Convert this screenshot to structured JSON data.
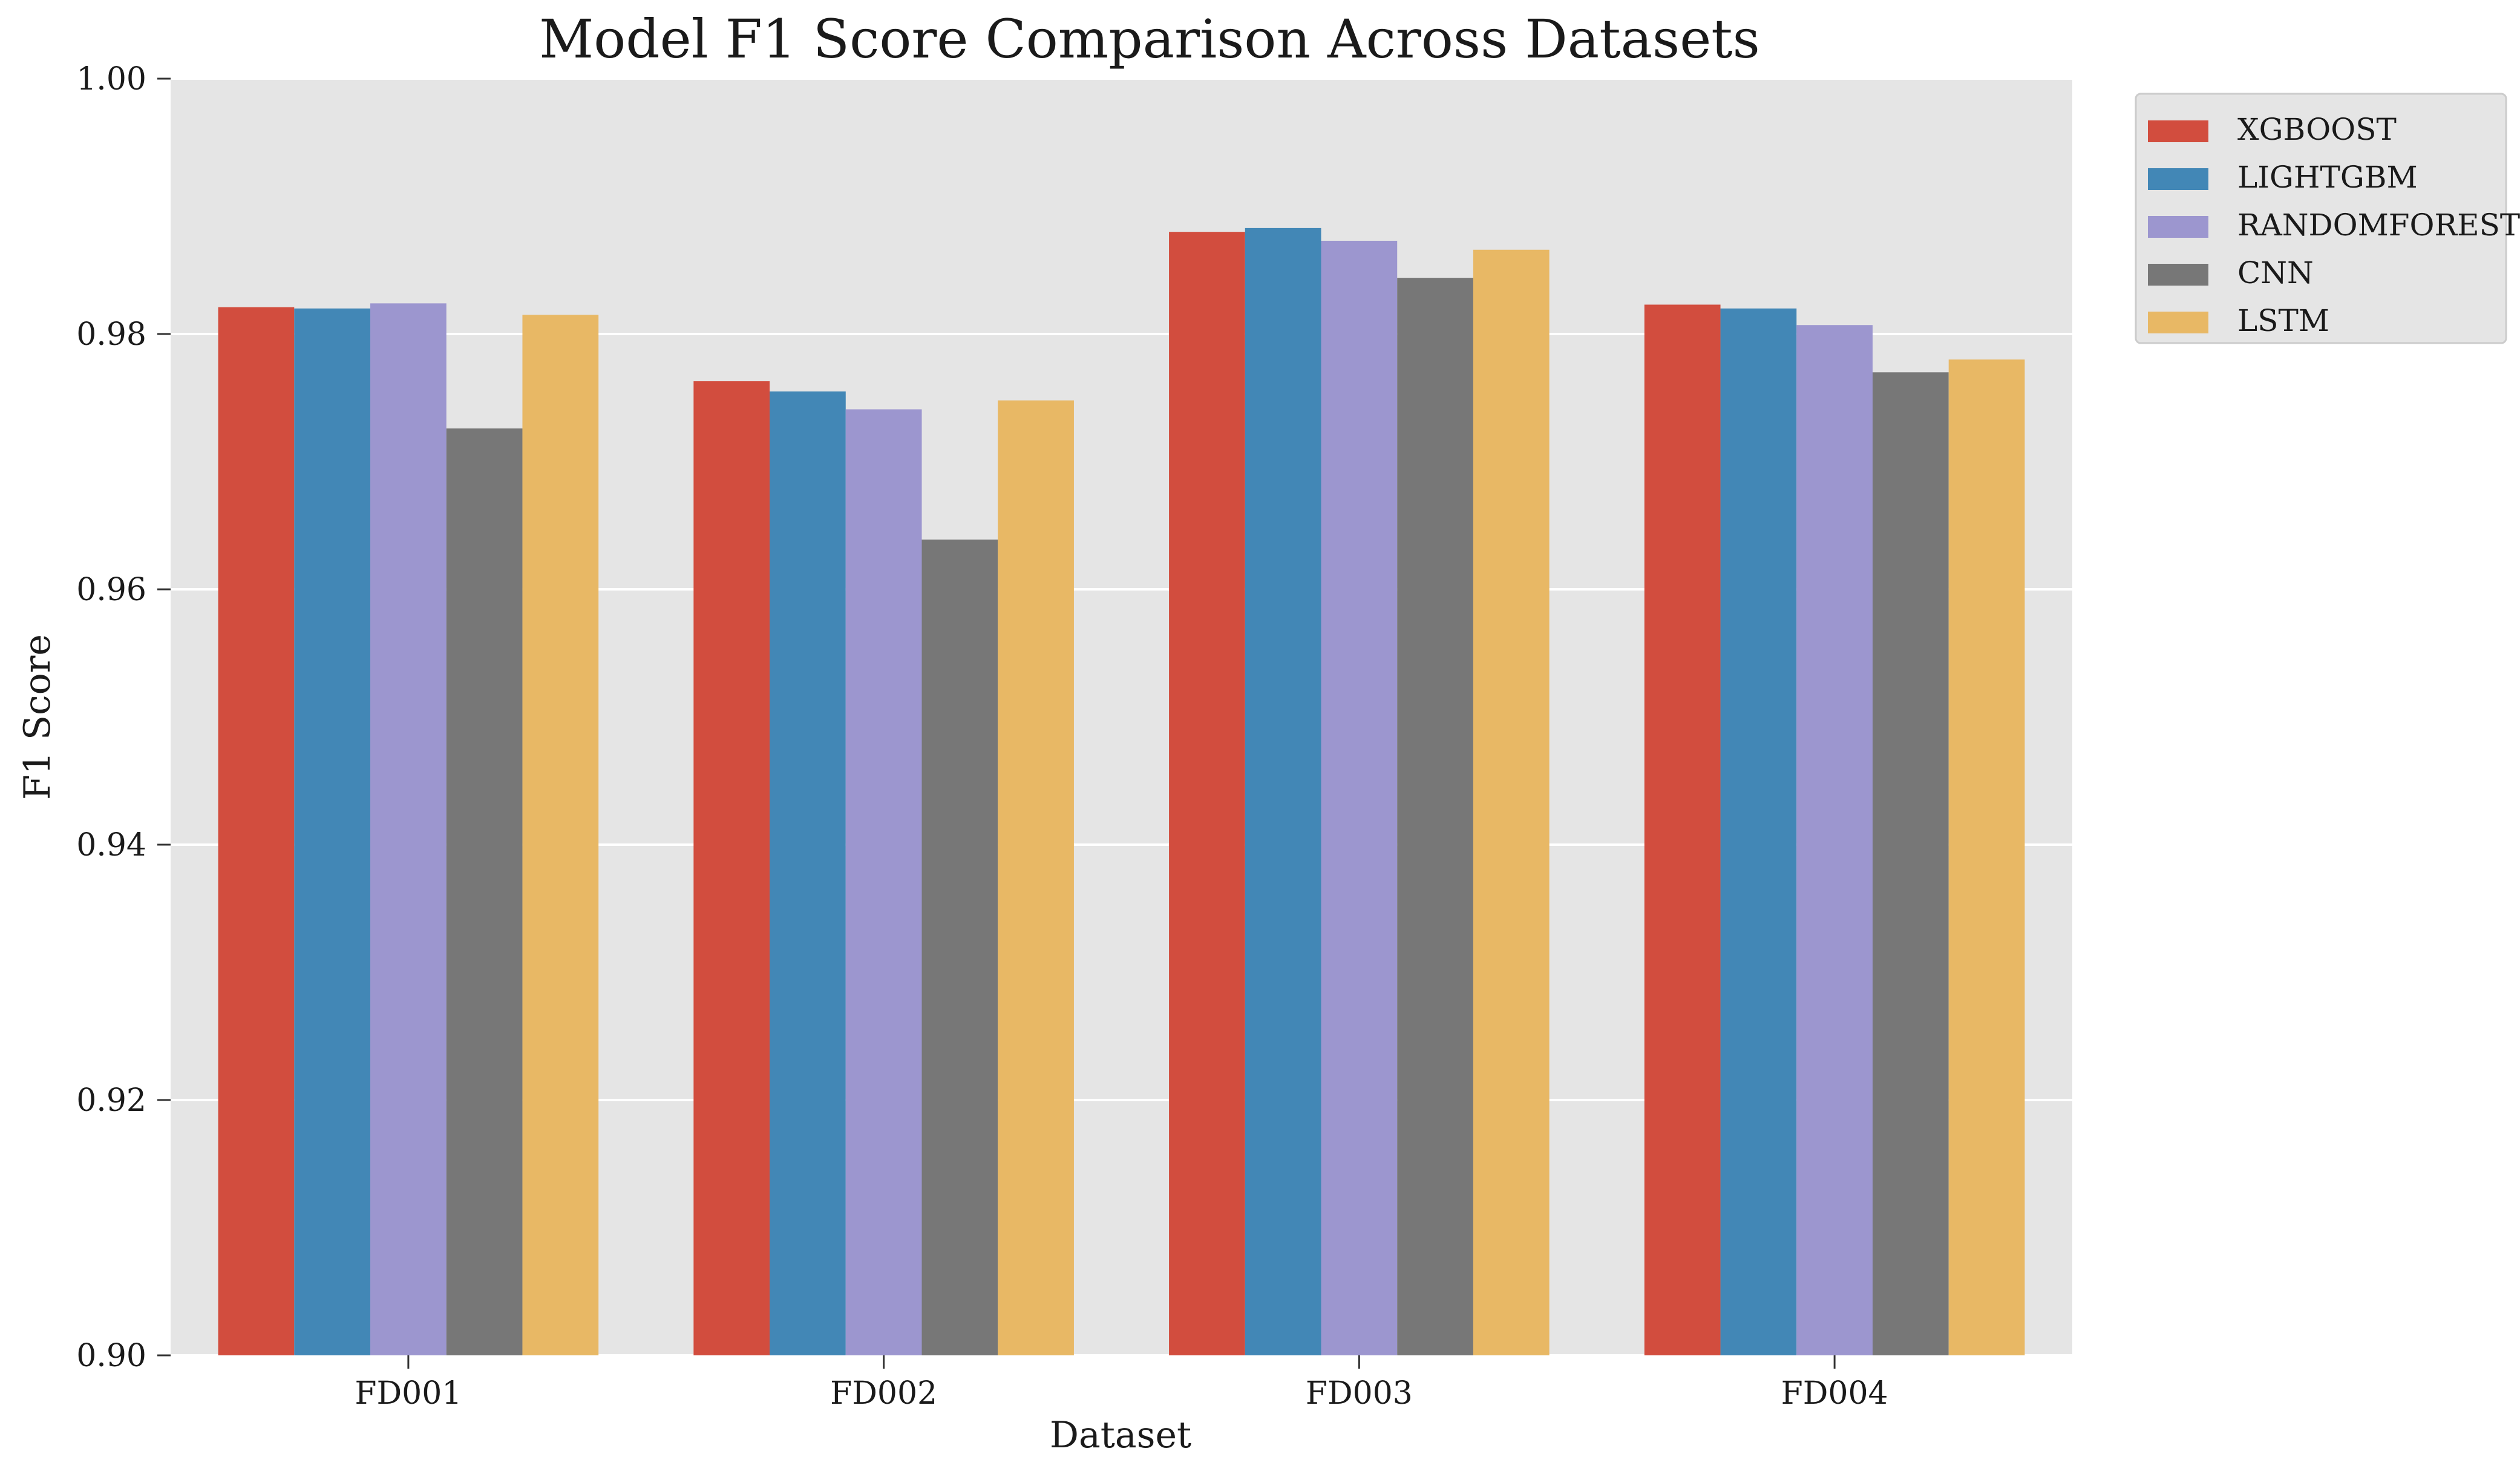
{
  "chart_data": {
    "type": "bar",
    "title": "Model F1 Score Comparison Across Datasets",
    "xlabel": "Dataset",
    "ylabel": "F1 Score",
    "ylim": [
      0.9,
      1.0
    ],
    "yticks": [
      "0.90",
      "0.92",
      "0.94",
      "0.96",
      "0.98",
      "1.00"
    ],
    "ytick_values": [
      0.9,
      0.92,
      0.94,
      0.96,
      0.98,
      1.0
    ],
    "categories": [
      "FD001",
      "FD002",
      "FD003",
      "FD004"
    ],
    "series": [
      {
        "name": "XGBOOST",
        "color": "#d24d3e",
        "values": [
          0.9821,
          0.9763,
          0.988,
          0.9823
        ]
      },
      {
        "name": "LIGHTGBM",
        "color": "#4287b6",
        "values": [
          0.982,
          0.9755,
          0.9883,
          0.982
        ]
      },
      {
        "name": "RANDOMFOREST",
        "color": "#9c96cf",
        "values": [
          0.9824,
          0.9741,
          0.9873,
          0.9807
        ]
      },
      {
        "name": "CNN",
        "color": "#777777",
        "values": [
          0.9726,
          0.9639,
          0.9844,
          0.977
        ]
      },
      {
        "name": "LSTM",
        "color": "#e8b865",
        "values": [
          0.9815,
          0.9748,
          0.9866,
          0.978
        ]
      }
    ],
    "grid": true,
    "legend_position": "outside-top-right",
    "plot_background": "#e5e5e5"
  }
}
